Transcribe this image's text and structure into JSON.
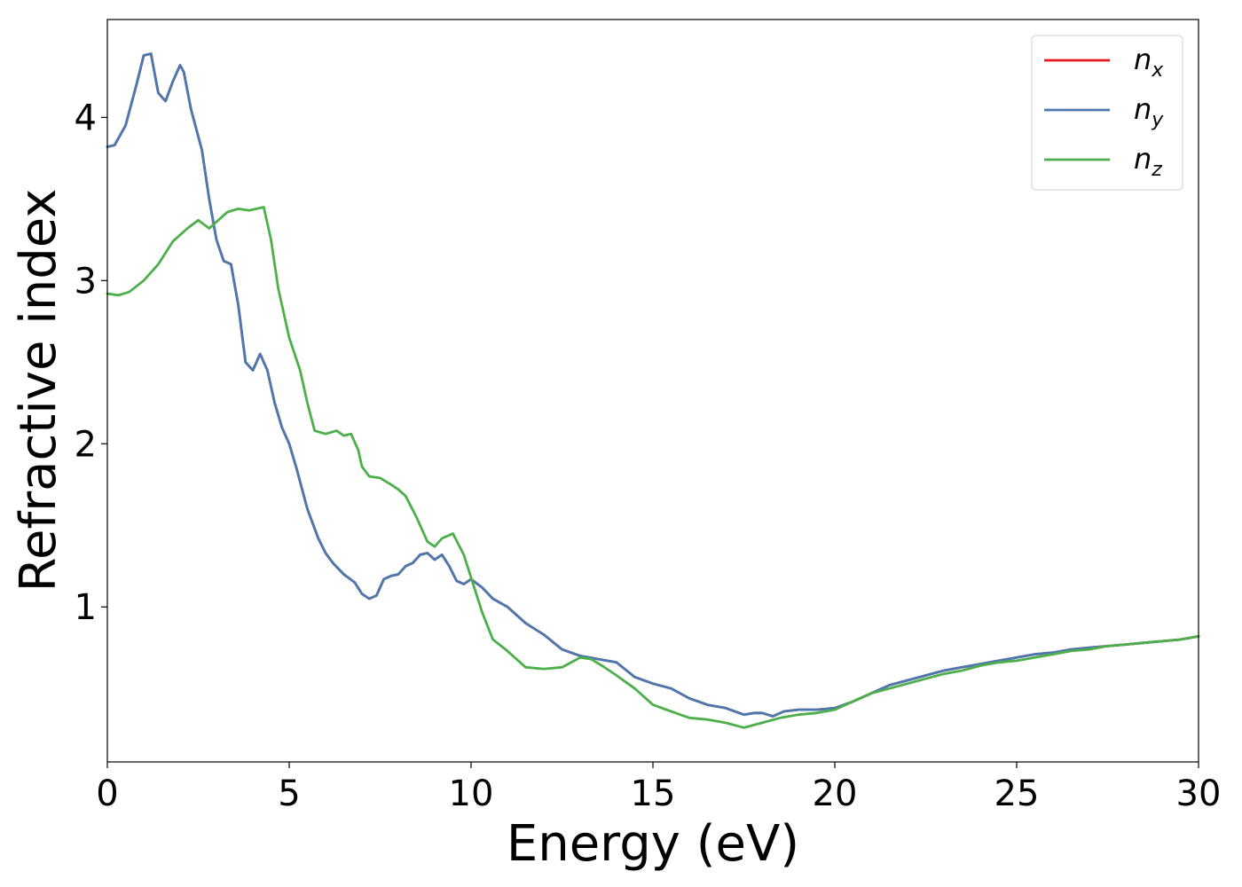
{
  "chart_data": {
    "type": "line",
    "xlabel": "Energy (eV)",
    "ylabel": "Refractive index",
    "xlim": [
      0,
      30
    ],
    "ylim": [
      0.05,
      4.6
    ],
    "xticks": [
      0,
      5,
      10,
      15,
      20,
      25,
      30
    ],
    "yticks": [
      1,
      2,
      3,
      4
    ],
    "grid": false,
    "legend_position": "top-right",
    "series": [
      {
        "name": "n_x",
        "legend_base": "n",
        "legend_sub": "x",
        "color": "#e41a1c",
        "x": [
          0,
          0.2,
          0.5,
          0.8,
          1.0,
          1.2,
          1.4,
          1.6,
          1.8,
          2.0,
          2.1,
          2.3,
          2.6,
          2.8,
          3.0,
          3.2,
          3.4,
          3.6,
          3.8,
          4.0,
          4.2,
          4.4,
          4.6,
          4.8,
          5.0,
          5.2,
          5.5,
          5.8,
          6.0,
          6.2,
          6.5,
          6.8,
          7.0,
          7.2,
          7.4,
          7.6,
          7.8,
          8.0,
          8.2,
          8.4,
          8.6,
          8.8,
          9.0,
          9.2,
          9.4,
          9.6,
          9.8,
          10.0,
          10.3,
          10.6,
          11.0,
          11.5,
          12.0,
          12.5,
          13.0,
          13.5,
          14.0,
          14.5,
          15.0,
          15.5,
          16.0,
          16.5,
          17.0,
          17.5,
          17.8,
          18.0,
          18.3,
          18.6,
          19.0,
          19.5,
          20.0,
          20.5,
          21.0,
          21.5,
          22.0,
          22.5,
          23.0,
          23.5,
          24.0,
          24.5,
          25.0,
          25.5,
          26.0,
          26.5,
          27.0,
          27.5,
          28.0,
          28.5,
          29.0,
          29.5,
          30.0
        ],
        "y": [
          3.82,
          3.83,
          3.95,
          4.2,
          4.38,
          4.39,
          4.15,
          4.1,
          4.22,
          4.32,
          4.28,
          4.05,
          3.8,
          3.5,
          3.25,
          3.12,
          3.1,
          2.85,
          2.5,
          2.45,
          2.55,
          2.45,
          2.25,
          2.1,
          2.0,
          1.85,
          1.6,
          1.42,
          1.33,
          1.27,
          1.2,
          1.15,
          1.08,
          1.05,
          1.07,
          1.17,
          1.19,
          1.2,
          1.25,
          1.27,
          1.32,
          1.33,
          1.29,
          1.32,
          1.25,
          1.16,
          1.14,
          1.17,
          1.12,
          1.05,
          1.0,
          0.9,
          0.83,
          0.74,
          0.7,
          0.68,
          0.66,
          0.57,
          0.53,
          0.5,
          0.44,
          0.4,
          0.38,
          0.34,
          0.35,
          0.35,
          0.33,
          0.36,
          0.37,
          0.37,
          0.38,
          0.42,
          0.47,
          0.52,
          0.55,
          0.58,
          0.61,
          0.63,
          0.65,
          0.67,
          0.69,
          0.71,
          0.72,
          0.74,
          0.75,
          0.76,
          0.77,
          0.78,
          0.79,
          0.8,
          0.82
        ]
      },
      {
        "name": "n_y",
        "legend_base": "n",
        "legend_sub": "y",
        "color": "#4a79b0",
        "x": [
          0,
          0.2,
          0.5,
          0.8,
          1.0,
          1.2,
          1.4,
          1.6,
          1.8,
          2.0,
          2.1,
          2.3,
          2.6,
          2.8,
          3.0,
          3.2,
          3.4,
          3.6,
          3.8,
          4.0,
          4.2,
          4.4,
          4.6,
          4.8,
          5.0,
          5.2,
          5.5,
          5.8,
          6.0,
          6.2,
          6.5,
          6.8,
          7.0,
          7.2,
          7.4,
          7.6,
          7.8,
          8.0,
          8.2,
          8.4,
          8.6,
          8.8,
          9.0,
          9.2,
          9.4,
          9.6,
          9.8,
          10.0,
          10.3,
          10.6,
          11.0,
          11.5,
          12.0,
          12.5,
          13.0,
          13.5,
          14.0,
          14.5,
          15.0,
          15.5,
          16.0,
          16.5,
          17.0,
          17.5,
          17.8,
          18.0,
          18.3,
          18.6,
          19.0,
          19.5,
          20.0,
          20.5,
          21.0,
          21.5,
          22.0,
          22.5,
          23.0,
          23.5,
          24.0,
          24.5,
          25.0,
          25.5,
          26.0,
          26.5,
          27.0,
          27.5,
          28.0,
          28.5,
          29.0,
          29.5,
          30.0
        ],
        "y": [
          3.82,
          3.83,
          3.95,
          4.2,
          4.38,
          4.39,
          4.15,
          4.1,
          4.22,
          4.32,
          4.28,
          4.05,
          3.8,
          3.5,
          3.25,
          3.12,
          3.1,
          2.85,
          2.5,
          2.45,
          2.55,
          2.45,
          2.25,
          2.1,
          2.0,
          1.85,
          1.6,
          1.42,
          1.33,
          1.27,
          1.2,
          1.15,
          1.08,
          1.05,
          1.07,
          1.17,
          1.19,
          1.2,
          1.25,
          1.27,
          1.32,
          1.33,
          1.29,
          1.32,
          1.25,
          1.16,
          1.14,
          1.17,
          1.12,
          1.05,
          1.0,
          0.9,
          0.83,
          0.74,
          0.7,
          0.68,
          0.66,
          0.57,
          0.53,
          0.5,
          0.44,
          0.4,
          0.38,
          0.34,
          0.35,
          0.35,
          0.33,
          0.36,
          0.37,
          0.37,
          0.38,
          0.42,
          0.47,
          0.52,
          0.55,
          0.58,
          0.61,
          0.63,
          0.65,
          0.67,
          0.69,
          0.71,
          0.72,
          0.74,
          0.75,
          0.76,
          0.77,
          0.78,
          0.79,
          0.8,
          0.82
        ]
      },
      {
        "name": "n_z",
        "legend_base": "n",
        "legend_sub": "z",
        "color": "#4daf4a",
        "x": [
          0,
          0.3,
          0.6,
          1.0,
          1.4,
          1.8,
          2.2,
          2.5,
          2.8,
          3.0,
          3.3,
          3.6,
          3.9,
          4.1,
          4.3,
          4.5,
          4.7,
          5.0,
          5.3,
          5.5,
          5.7,
          6.0,
          6.3,
          6.5,
          6.7,
          6.9,
          7.0,
          7.2,
          7.5,
          7.8,
          8.0,
          8.2,
          8.5,
          8.8,
          9.0,
          9.2,
          9.5,
          9.8,
          10.0,
          10.3,
          10.6,
          11.0,
          11.5,
          12.0,
          12.5,
          13.0,
          13.3,
          13.6,
          14.0,
          14.5,
          15.0,
          15.5,
          16.0,
          16.5,
          17.0,
          17.5,
          18.0,
          18.5,
          19.0,
          19.5,
          20.0,
          20.5,
          21.0,
          21.5,
          22.0,
          22.5,
          23.0,
          23.5,
          24.0,
          24.5,
          25.0,
          25.5,
          26.0,
          26.5,
          27.0,
          27.5,
          28.0,
          28.5,
          29.0,
          29.5,
          30.0
        ],
        "y": [
          2.92,
          2.91,
          2.93,
          3.0,
          3.1,
          3.24,
          3.32,
          3.37,
          3.32,
          3.36,
          3.42,
          3.44,
          3.43,
          3.44,
          3.45,
          3.25,
          2.95,
          2.65,
          2.45,
          2.25,
          2.08,
          2.06,
          2.08,
          2.05,
          2.06,
          1.96,
          1.86,
          1.8,
          1.79,
          1.75,
          1.72,
          1.68,
          1.55,
          1.4,
          1.37,
          1.42,
          1.45,
          1.32,
          1.18,
          0.97,
          0.8,
          0.73,
          0.63,
          0.62,
          0.63,
          0.69,
          0.68,
          0.64,
          0.58,
          0.5,
          0.4,
          0.36,
          0.32,
          0.31,
          0.29,
          0.26,
          0.29,
          0.32,
          0.34,
          0.35,
          0.37,
          0.42,
          0.47,
          0.5,
          0.53,
          0.56,
          0.59,
          0.61,
          0.64,
          0.66,
          0.67,
          0.69,
          0.71,
          0.73,
          0.74,
          0.76,
          0.77,
          0.78,
          0.79,
          0.8,
          0.82
        ]
      }
    ]
  }
}
